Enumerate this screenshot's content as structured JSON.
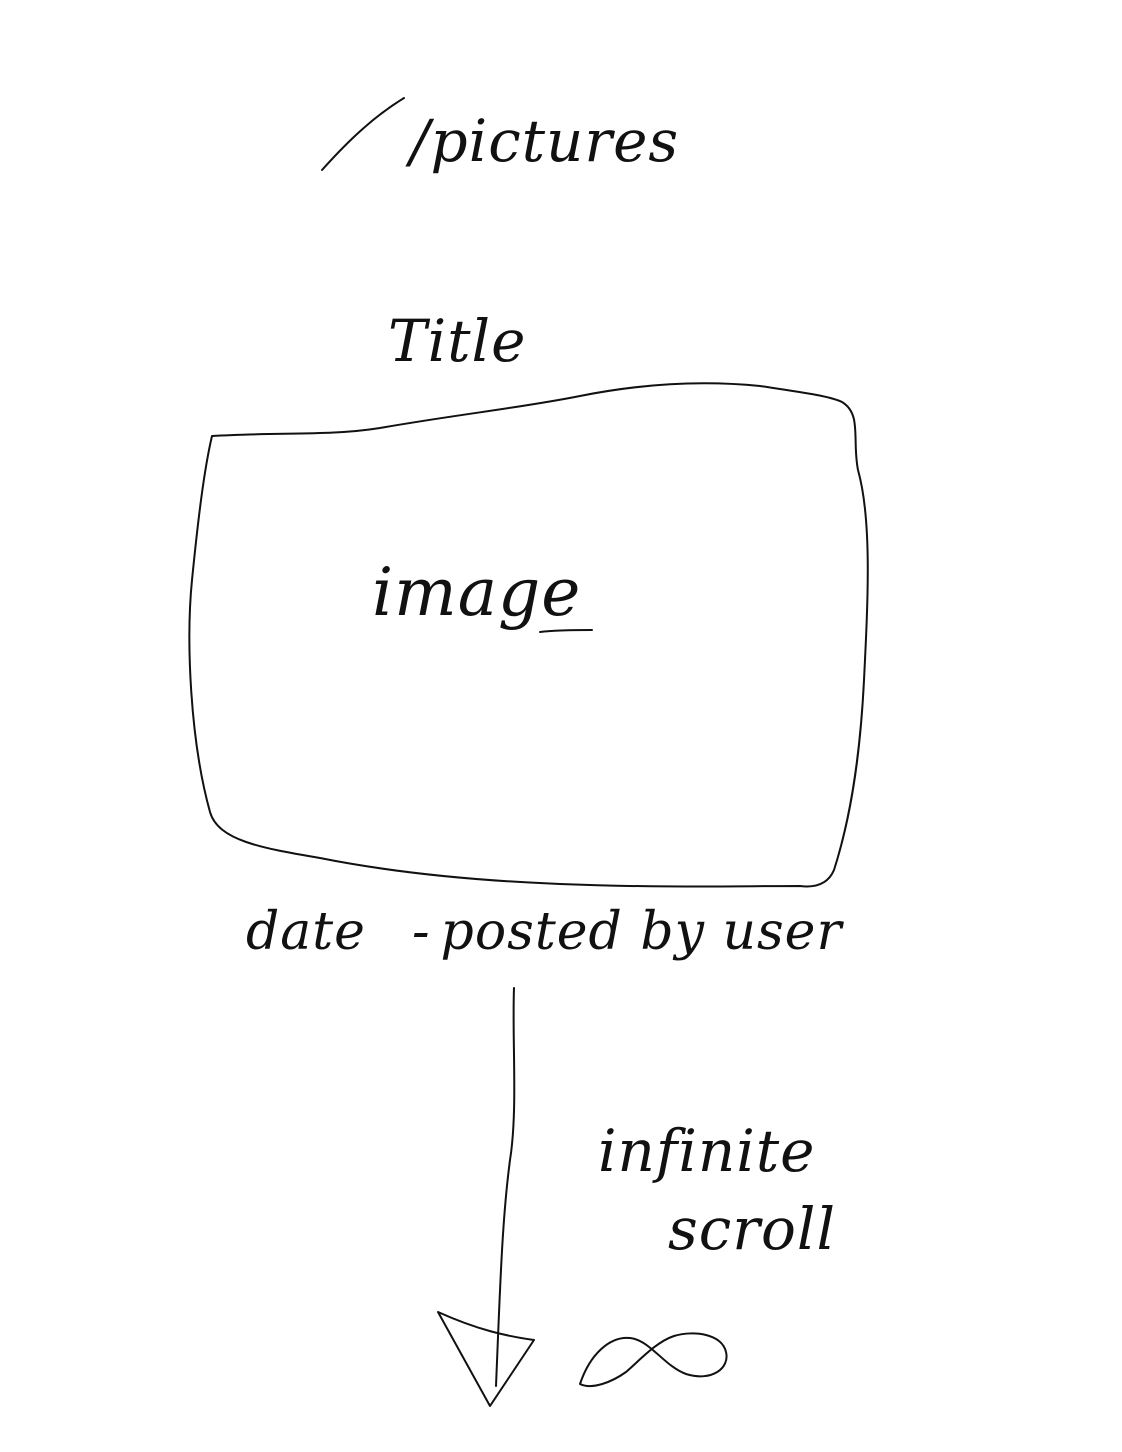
{
  "route": "/pictures",
  "post": {
    "title": "Title",
    "image_label": "image",
    "date": "date",
    "separator": "-",
    "byline": "posted by user"
  },
  "scroll": {
    "line1": "infinite",
    "line2": "scroll"
  },
  "icons": {
    "scroll_arrow": "arrow-down-icon",
    "infinity": "infinity-icon"
  },
  "colors": {
    "ink": "#111111",
    "paper": "#ffffff"
  }
}
